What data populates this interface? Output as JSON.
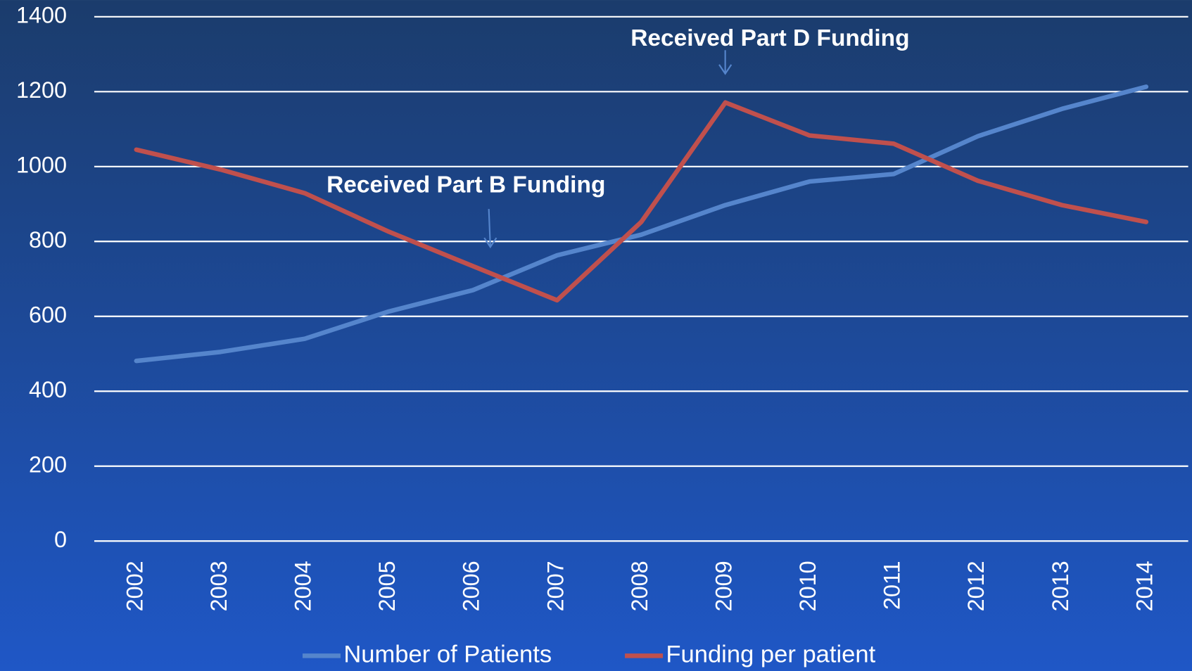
{
  "chart_data": {
    "type": "line",
    "categories": [
      "2002",
      "2003",
      "2004",
      "2005",
      "2006",
      "2007",
      "2008",
      "2009",
      "2010",
      "2011",
      "2012",
      "2013",
      "2014"
    ],
    "series": [
      {
        "name": "Number of Patients",
        "color": "#5585cc",
        "values": [
          481,
          505,
          540,
          613,
          670,
          763,
          818,
          897,
          960,
          980,
          1081,
          1154,
          1213
        ]
      },
      {
        "name": "Funding per patient",
        "color": "#c0504d",
        "values": [
          1045,
          992,
          929,
          826,
          734,
          643,
          852,
          1171,
          1083,
          1061,
          962,
          897,
          852
        ]
      }
    ],
    "ylim": [
      0,
      1400
    ],
    "yticks": [
      0,
      200,
      400,
      600,
      800,
      1000,
      1200,
      1400
    ],
    "grid": true,
    "legend": "bottom",
    "annotations": [
      "Received Part B Funding",
      "Received Part D Funding"
    ]
  }
}
